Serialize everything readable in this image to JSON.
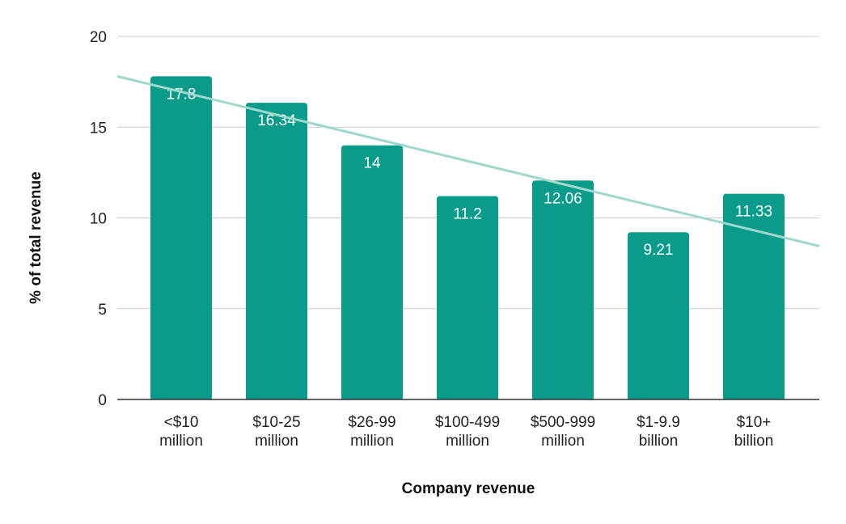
{
  "chart_data": {
    "type": "bar",
    "categories": [
      [
        "<$10",
        "million"
      ],
      [
        "$10-25",
        "million"
      ],
      [
        "$26-99",
        "million"
      ],
      [
        "$100-499",
        "million"
      ],
      [
        "$500-999",
        "million"
      ],
      [
        "$1-9.9",
        "billion"
      ],
      [
        "$10+",
        "billion"
      ]
    ],
    "values": [
      17.8,
      16.34,
      14,
      11.2,
      12.06,
      9.21,
      11.33
    ],
    "data_labels": [
      "17.8",
      "16.34",
      "14",
      "11.2",
      "12.06",
      "9.21",
      "11.33"
    ],
    "title": "",
    "xlabel": "Company revenue",
    "ylabel": "% of total revenue",
    "ylim": [
      0,
      20
    ],
    "yticks": [
      0,
      5,
      10,
      15,
      20
    ],
    "grid": true,
    "trendline": "linear",
    "colors": {
      "bar": "#0b9b8b",
      "trendline": "#9fd8cc",
      "grid": "#cccccc",
      "axis": "#333333"
    }
  }
}
